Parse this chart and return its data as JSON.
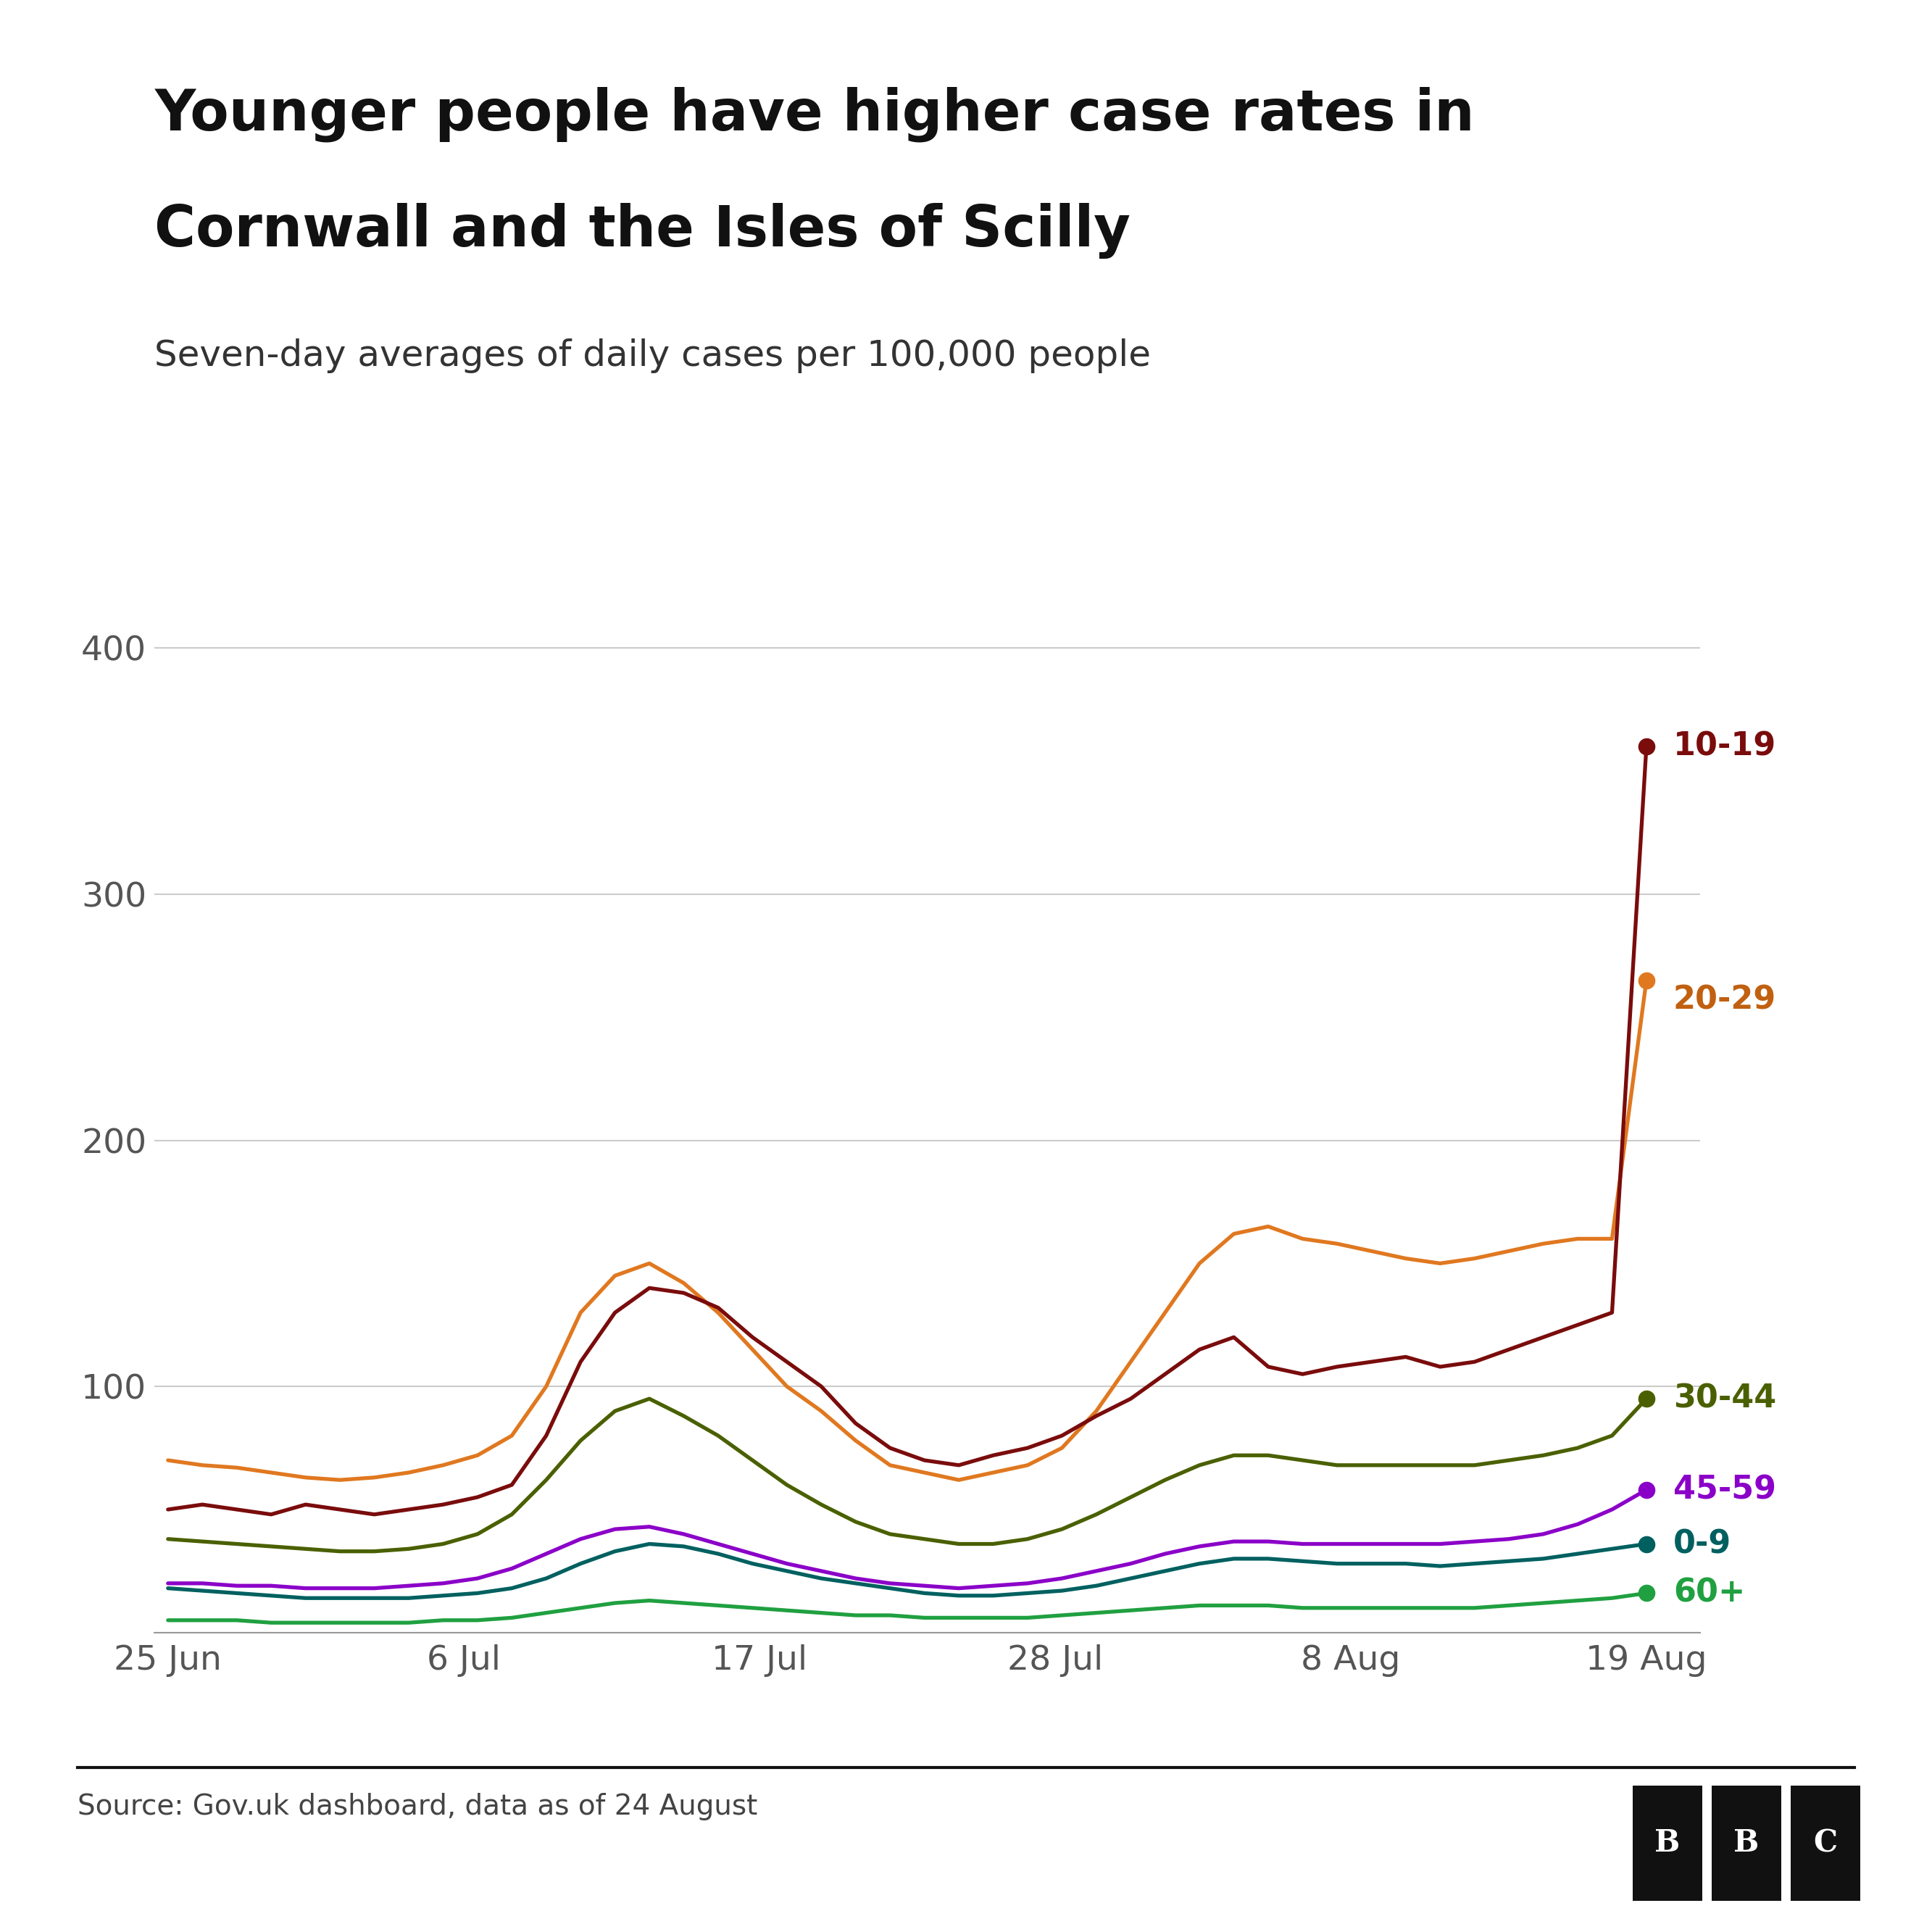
{
  "title_line1": "Younger people have higher case rates in",
  "title_line2": "Cornwall and the Isles of Scilly",
  "subtitle": "Seven-day averages of daily cases per 100,000 people",
  "source": "Source: Gov.uk dashboard, data as of 24 August",
  "background_color": "#ffffff",
  "title_fontsize": 56,
  "subtitle_fontsize": 36,
  "source_fontsize": 28,
  "tick_fontsize": 34,
  "label_fontsize": 32,
  "ylim": [
    0,
    420
  ],
  "yticks": [
    0,
    100,
    200,
    300,
    400
  ],
  "xtick_labels": [
    "25 Jun",
    "6 Jul",
    "17 Jul",
    "28 Jul",
    "8 Aug",
    "19 Aug"
  ],
  "xtick_positions": [
    0,
    11,
    22,
    33,
    44,
    55
  ],
  "series": {
    "10-19": {
      "color": "#7a0c0c",
      "label_color": "#7a0c0c",
      "data": [
        50,
        52,
        50,
        48,
        52,
        50,
        48,
        50,
        52,
        55,
        60,
        80,
        110,
        130,
        140,
        138,
        132,
        120,
        110,
        100,
        85,
        75,
        70,
        68,
        72,
        75,
        80,
        88,
        95,
        105,
        115,
        120,
        108,
        105,
        108,
        110,
        112,
        108,
        110,
        115,
        120,
        125,
        130,
        360
      ],
      "dot_at_end": true
    },
    "20-29": {
      "color": "#e07820",
      "label_color": "#c06010",
      "data": [
        70,
        68,
        67,
        65,
        63,
        62,
        63,
        65,
        68,
        72,
        80,
        100,
        130,
        145,
        150,
        142,
        130,
        115,
        100,
        90,
        78,
        68,
        65,
        62,
        65,
        68,
        75,
        90,
        110,
        130,
        150,
        162,
        165,
        160,
        158,
        155,
        152,
        150,
        152,
        155,
        158,
        160,
        160,
        265
      ],
      "dot_at_end": true
    },
    "30-44": {
      "color": "#4a6000",
      "label_color": "#4a6000",
      "data": [
        38,
        37,
        36,
        35,
        34,
        33,
        33,
        34,
        36,
        40,
        48,
        62,
        78,
        90,
        95,
        88,
        80,
        70,
        60,
        52,
        45,
        40,
        38,
        36,
        36,
        38,
        42,
        48,
        55,
        62,
        68,
        72,
        72,
        70,
        68,
        68,
        68,
        68,
        68,
        70,
        72,
        75,
        80,
        95
      ],
      "dot_at_end": true
    },
    "45-59": {
      "color": "#8b00c8",
      "label_color": "#8b00c8",
      "data": [
        20,
        20,
        19,
        19,
        18,
        18,
        18,
        19,
        20,
        22,
        26,
        32,
        38,
        42,
        43,
        40,
        36,
        32,
        28,
        25,
        22,
        20,
        19,
        18,
        19,
        20,
        22,
        25,
        28,
        32,
        35,
        37,
        37,
        36,
        36,
        36,
        36,
        36,
        37,
        38,
        40,
        44,
        50,
        58
      ],
      "dot_at_end": true
    },
    "0-9": {
      "color": "#006060",
      "label_color": "#006060",
      "data": [
        18,
        17,
        16,
        15,
        14,
        14,
        14,
        14,
        15,
        16,
        18,
        22,
        28,
        33,
        36,
        35,
        32,
        28,
        25,
        22,
        20,
        18,
        16,
        15,
        15,
        16,
        17,
        19,
        22,
        25,
        28,
        30,
        30,
        29,
        28,
        28,
        28,
        27,
        28,
        29,
        30,
        32,
        34,
        36
      ],
      "dot_at_end": true
    },
    "60+": {
      "color": "#20a040",
      "label_color": "#20a040",
      "data": [
        5,
        5,
        5,
        4,
        4,
        4,
        4,
        4,
        5,
        5,
        6,
        8,
        10,
        12,
        13,
        12,
        11,
        10,
        9,
        8,
        7,
        7,
        6,
        6,
        6,
        6,
        7,
        8,
        9,
        10,
        11,
        11,
        11,
        10,
        10,
        10,
        10,
        10,
        10,
        11,
        12,
        13,
        14,
        16
      ],
      "dot_at_end": true
    }
  }
}
